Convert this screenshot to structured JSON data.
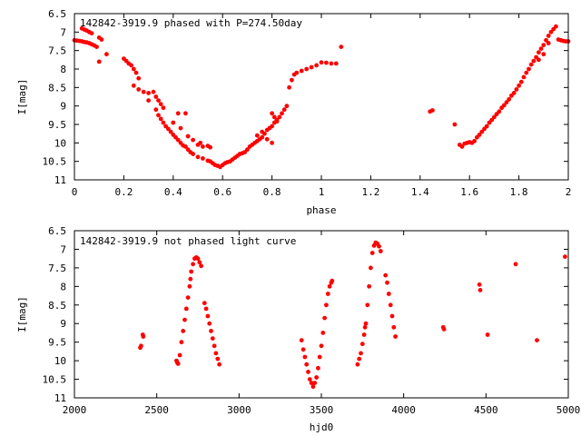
{
  "chart_data": [
    {
      "type": "scatter",
      "title": "142842-3919.9 phased with P=274.50day",
      "xlabel": "phase",
      "ylabel": "I[mag]",
      "xlim": [
        0,
        2
      ],
      "ylim": [
        6.5,
        11
      ],
      "y_inverted": true,
      "x_ticks": [
        "0",
        "0.2",
        "0.4",
        "0.6",
        "0.8",
        "1",
        "1.2",
        "1.4",
        "1.6",
        "1.8",
        "2"
      ],
      "y_ticks": [
        "6.5",
        "7",
        "7.5",
        "8",
        "8.5",
        "9",
        "9.5",
        "10",
        "10.5",
        "11"
      ],
      "marker_color": "#ff0000",
      "series": [
        {
          "points": [
            [
              0.0,
              7.22
            ],
            [
              0.01,
              7.23
            ],
            [
              0.02,
              7.24
            ],
            [
              0.03,
              7.25
            ],
            [
              0.04,
              7.27
            ],
            [
              0.05,
              7.28
            ],
            [
              0.06,
              7.3
            ],
            [
              0.07,
              7.33
            ],
            [
              0.08,
              7.36
            ],
            [
              0.09,
              7.4
            ],
            [
              0.03,
              6.9
            ],
            [
              0.04,
              6.93
            ],
            [
              0.05,
              6.96
            ],
            [
              0.06,
              7.0
            ],
            [
              0.07,
              7.03
            ],
            [
              0.1,
              7.15
            ],
            [
              0.11,
              7.2
            ],
            [
              0.1,
              7.8
            ],
            [
              0.13,
              7.6
            ],
            [
              0.2,
              7.72
            ],
            [
              0.21,
              7.78
            ],
            [
              0.22,
              7.85
            ],
            [
              0.23,
              7.9
            ],
            [
              0.24,
              8.0
            ],
            [
              0.25,
              8.1
            ],
            [
              0.26,
              8.25
            ],
            [
              0.24,
              8.45
            ],
            [
              0.26,
              8.55
            ],
            [
              0.28,
              8.62
            ],
            [
              0.3,
              8.65
            ],
            [
              0.3,
              8.85
            ],
            [
              0.32,
              8.62
            ],
            [
              0.33,
              8.75
            ],
            [
              0.34,
              8.85
            ],
            [
              0.35,
              8.95
            ],
            [
              0.36,
              9.05
            ],
            [
              0.33,
              9.1
            ],
            [
              0.34,
              9.25
            ],
            [
              0.35,
              9.35
            ],
            [
              0.36,
              9.45
            ],
            [
              0.37,
              9.55
            ],
            [
              0.38,
              9.62
            ],
            [
              0.39,
              9.7
            ],
            [
              0.4,
              9.78
            ],
            [
              0.41,
              9.85
            ],
            [
              0.42,
              9.92
            ],
            [
              0.42,
              9.2
            ],
            [
              0.45,
              9.2
            ],
            [
              0.4,
              9.45
            ],
            [
              0.43,
              9.6
            ],
            [
              0.43,
              10.0
            ],
            [
              0.44,
              10.07
            ],
            [
              0.45,
              10.1
            ],
            [
              0.46,
              10.18
            ],
            [
              0.47,
              10.25
            ],
            [
              0.48,
              10.3
            ],
            [
              0.46,
              9.82
            ],
            [
              0.48,
              9.92
            ],
            [
              0.5,
              10.05
            ],
            [
              0.51,
              10.0
            ],
            [
              0.52,
              10.1
            ],
            [
              0.5,
              10.38
            ],
            [
              0.52,
              10.42
            ],
            [
              0.54,
              10.48
            ],
            [
              0.55,
              10.5
            ],
            [
              0.56,
              10.55
            ],
            [
              0.57,
              10.6
            ],
            [
              0.58,
              10.62
            ],
            [
              0.59,
              10.65
            ],
            [
              0.6,
              10.6
            ],
            [
              0.61,
              10.55
            ],
            [
              0.62,
              10.52
            ],
            [
              0.63,
              10.5
            ],
            [
              0.64,
              10.45
            ],
            [
              0.54,
              10.08
            ],
            [
              0.55,
              10.12
            ],
            [
              0.65,
              10.4
            ],
            [
              0.66,
              10.35
            ],
            [
              0.67,
              10.3
            ],
            [
              0.68,
              10.28
            ],
            [
              0.69,
              10.25
            ],
            [
              0.7,
              10.18
            ],
            [
              0.71,
              10.1
            ],
            [
              0.72,
              10.05
            ],
            [
              0.73,
              10.0
            ],
            [
              0.74,
              9.95
            ],
            [
              0.75,
              9.9
            ],
            [
              0.76,
              9.85
            ],
            [
              0.77,
              9.75
            ],
            [
              0.78,
              9.65
            ],
            [
              0.79,
              9.6
            ],
            [
              0.8,
              9.55
            ],
            [
              0.81,
              9.45
            ],
            [
              0.82,
              9.38
            ],
            [
              0.83,
              9.3
            ],
            [
              0.84,
              9.2
            ],
            [
              0.85,
              9.1
            ],
            [
              0.86,
              9.0
            ],
            [
              0.74,
              9.8
            ],
            [
              0.76,
              9.7
            ],
            [
              0.78,
              9.9
            ],
            [
              0.8,
              10.0
            ],
            [
              0.8,
              9.2
            ],
            [
              0.81,
              9.3
            ],
            [
              0.82,
              9.42
            ],
            [
              0.87,
              8.5
            ],
            [
              0.88,
              8.3
            ],
            [
              0.89,
              8.15
            ],
            [
              0.9,
              8.1
            ],
            [
              0.92,
              8.05
            ],
            [
              0.94,
              8.0
            ],
            [
              0.96,
              7.95
            ],
            [
              0.98,
              7.9
            ],
            [
              1.0,
              7.82
            ],
            [
              1.02,
              7.83
            ],
            [
              1.04,
              7.85
            ],
            [
              1.06,
              7.85
            ],
            [
              1.08,
              7.4
            ],
            [
              1.44,
              9.15
            ],
            [
              1.45,
              9.12
            ],
            [
              1.54,
              9.5
            ],
            [
              1.56,
              10.05
            ],
            [
              1.57,
              10.1
            ],
            [
              1.58,
              10.02
            ],
            [
              1.59,
              10.0
            ],
            [
              1.6,
              9.98
            ],
            [
              1.61,
              10.0
            ],
            [
              1.62,
              9.95
            ],
            [
              1.63,
              9.85
            ],
            [
              1.64,
              9.78
            ],
            [
              1.65,
              9.7
            ],
            [
              1.66,
              9.62
            ],
            [
              1.67,
              9.55
            ],
            [
              1.68,
              9.45
            ],
            [
              1.69,
              9.38
            ],
            [
              1.7,
              9.3
            ],
            [
              1.71,
              9.22
            ],
            [
              1.72,
              9.15
            ],
            [
              1.73,
              9.05
            ],
            [
              1.74,
              8.98
            ],
            [
              1.75,
              8.9
            ],
            [
              1.76,
              8.82
            ],
            [
              1.77,
              8.72
            ],
            [
              1.78,
              8.65
            ],
            [
              1.79,
              8.55
            ],
            [
              1.8,
              8.45
            ],
            [
              1.81,
              8.35
            ],
            [
              1.82,
              8.22
            ],
            [
              1.83,
              8.1
            ],
            [
              1.84,
              8.0
            ],
            [
              1.85,
              7.88
            ],
            [
              1.86,
              7.78
            ],
            [
              1.87,
              7.68
            ],
            [
              1.88,
              7.55
            ],
            [
              1.89,
              7.45
            ],
            [
              1.9,
              7.35
            ],
            [
              1.91,
              7.22
            ],
            [
              1.92,
              7.1
            ],
            [
              1.93,
              7.0
            ],
            [
              1.94,
              6.92
            ],
            [
              1.95,
              6.85
            ],
            [
              1.9,
              7.6
            ],
            [
              1.88,
              7.75
            ],
            [
              1.92,
              7.3
            ],
            [
              1.96,
              7.2
            ],
            [
              1.97,
              7.22
            ],
            [
              1.98,
              7.24
            ],
            [
              1.99,
              7.25
            ],
            [
              2.0,
              7.25
            ]
          ]
        }
      ]
    },
    {
      "type": "scatter",
      "title": "142842-3919.9 not phased light curve",
      "xlabel": "hjd0",
      "ylabel": "I[mag]",
      "xlim": [
        2000,
        5000
      ],
      "ylim": [
        6.5,
        11
      ],
      "y_inverted": true,
      "x_ticks": [
        "2000",
        "2500",
        "3000",
        "3500",
        "4000",
        "4500",
        "5000"
      ],
      "y_ticks": [
        "6.5",
        "7",
        "7.5",
        "8",
        "8.5",
        "9",
        "9.5",
        "10",
        "10.5",
        "11"
      ],
      "marker_color": "#ff0000",
      "series": [
        {
          "points": [
            [
              2400,
              9.65
            ],
            [
              2405,
              9.6
            ],
            [
              2415,
              9.3
            ],
            [
              2418,
              9.35
            ],
            [
              2620,
              10.0
            ],
            [
              2625,
              10.05
            ],
            [
              2630,
              10.08
            ],
            [
              2640,
              9.85
            ],
            [
              2650,
              9.5
            ],
            [
              2660,
              9.2
            ],
            [
              2670,
              8.9
            ],
            [
              2680,
              8.6
            ],
            [
              2690,
              8.3
            ],
            [
              2700,
              8.0
            ],
            [
              2705,
              7.8
            ],
            [
              2710,
              7.6
            ],
            [
              2720,
              7.4
            ],
            [
              2730,
              7.25
            ],
            [
              2740,
              7.22
            ],
            [
              2750,
              7.25
            ],
            [
              2760,
              7.35
            ],
            [
              2770,
              7.45
            ],
            [
              2790,
              8.45
            ],
            [
              2800,
              8.6
            ],
            [
              2810,
              8.8
            ],
            [
              2820,
              9.0
            ],
            [
              2830,
              9.2
            ],
            [
              2840,
              9.4
            ],
            [
              2850,
              9.6
            ],
            [
              2860,
              9.8
            ],
            [
              2870,
              9.95
            ],
            [
              2880,
              10.1
            ],
            [
              3380,
              9.45
            ],
            [
              3390,
              9.7
            ],
            [
              3400,
              9.9
            ],
            [
              3410,
              10.1
            ],
            [
              3420,
              10.3
            ],
            [
              3430,
              10.5
            ],
            [
              3440,
              10.6
            ],
            [
              3450,
              10.7
            ],
            [
              3460,
              10.6
            ],
            [
              3470,
              10.45
            ],
            [
              3480,
              10.2
            ],
            [
              3490,
              9.9
            ],
            [
              3500,
              9.6
            ],
            [
              3510,
              9.25
            ],
            [
              3520,
              8.85
            ],
            [
              3530,
              8.5
            ],
            [
              3540,
              8.2
            ],
            [
              3550,
              8.0
            ],
            [
              3560,
              7.9
            ],
            [
              3565,
              7.85
            ],
            [
              3720,
              10.1
            ],
            [
              3730,
              9.95
            ],
            [
              3740,
              9.8
            ],
            [
              3750,
              9.55
            ],
            [
              3760,
              9.3
            ],
            [
              3765,
              9.1
            ],
            [
              3770,
              9.0
            ],
            [
              3780,
              8.5
            ],
            [
              3790,
              8.0
            ],
            [
              3800,
              7.5
            ],
            [
              3810,
              7.1
            ],
            [
              3820,
              6.9
            ],
            [
              3830,
              6.82
            ],
            [
              3840,
              6.85
            ],
            [
              3850,
              6.92
            ],
            [
              3860,
              7.05
            ],
            [
              3890,
              7.7
            ],
            [
              3900,
              7.9
            ],
            [
              3910,
              8.2
            ],
            [
              3920,
              8.5
            ],
            [
              3930,
              8.8
            ],
            [
              3940,
              9.1
            ],
            [
              3950,
              9.35
            ],
            [
              4240,
              9.1
            ],
            [
              4245,
              9.15
            ],
            [
              4460,
              7.95
            ],
            [
              4465,
              8.1
            ],
            [
              4510,
              9.3
            ],
            [
              4680,
              7.4
            ],
            [
              4810,
              9.45
            ],
            [
              4980,
              7.2
            ]
          ]
        }
      ]
    }
  ]
}
